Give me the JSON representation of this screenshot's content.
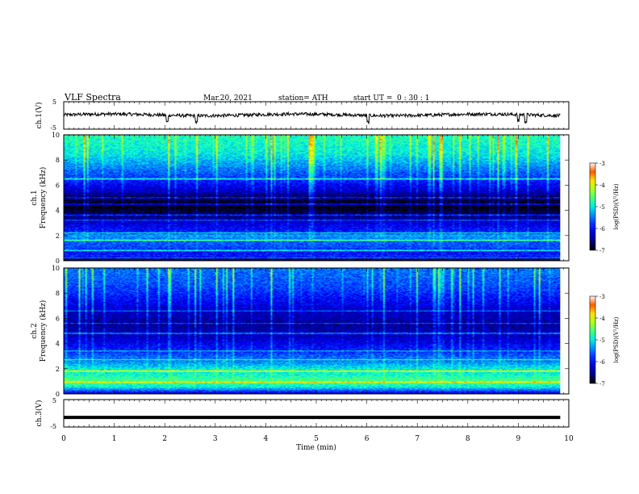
{
  "header": {
    "title": "VLF  Spectra",
    "date": "Mar.20, 2021",
    "station": "station= ATH",
    "start_label": "start  UT  =",
    "start_time": "0  : 30 : 1"
  },
  "chart_data": [
    {
      "type": "line",
      "name": "ch1-waveform",
      "ylabel": "ch.1(V)",
      "yticks": [
        "5",
        "-5"
      ],
      "ylim": [
        -5,
        5
      ],
      "xlim": [
        0,
        10
      ],
      "data_end_min": 9.83,
      "baseline_v": 0.2,
      "noise_amplitude_v": 1.2,
      "dip_at_min": [
        2.05,
        2.63,
        6.02,
        9.0,
        9.15
      ],
      "line_color": "#000000"
    },
    {
      "type": "heatmap",
      "name": "ch1-spectrogram",
      "ylabel_line1": "ch.1",
      "ylabel_line2": "Frequency  (kHz)",
      "yticks": [
        "0",
        "2",
        "4",
        "6",
        "8",
        "10"
      ],
      "ylim_khz": [
        0,
        10
      ],
      "xlim_min": [
        0,
        10
      ],
      "data_end_min": 9.83,
      "log_psd_range": [
        -7,
        -3
      ],
      "colorbar": {
        "label": "log(PSD)(V²/Hz)",
        "ticks": [
          "-3",
          "-4",
          "-5",
          "-6",
          "-7"
        ]
      },
      "band_profile_khz_logpsd": [
        [
          0.0,
          -7.0
        ],
        [
          0.3,
          -5.8
        ],
        [
          0.6,
          -6.0
        ],
        [
          1.0,
          -5.7
        ],
        [
          1.5,
          -5.6
        ],
        [
          2.0,
          -5.3
        ],
        [
          2.3,
          -5.9
        ],
        [
          3.0,
          -6.2
        ],
        [
          3.5,
          -6.6
        ],
        [
          4.2,
          -7.0
        ],
        [
          5.0,
          -6.8
        ],
        [
          5.5,
          -6.3
        ],
        [
          6.5,
          -5.8
        ],
        [
          7.5,
          -5.4
        ],
        [
          8.5,
          -5.0
        ],
        [
          10.0,
          -4.8
        ]
      ],
      "sferic_lines_khz": [
        0.2,
        0.8,
        1.6,
        2.2,
        3.2,
        3.6,
        4.5,
        5.0,
        6.5
      ]
    },
    {
      "type": "heatmap",
      "name": "ch2-spectrogram",
      "ylabel_line1": "ch.2",
      "ylabel_line2": "Frequency  (kHz)",
      "yticks": [
        "0",
        "2",
        "4",
        "6",
        "8",
        "10"
      ],
      "ylim_khz": [
        0,
        10
      ],
      "xlim_min": [
        0,
        10
      ],
      "data_end_min": 9.83,
      "log_psd_range": [
        -7,
        -3
      ],
      "colorbar": {
        "label": "log(PSD)(V²/Hz)",
        "ticks": [
          "-3",
          "-4",
          "-5",
          "-6",
          "-7"
        ]
      },
      "band_profile_khz_logpsd": [
        [
          0.0,
          -6.2
        ],
        [
          0.5,
          -5.0
        ],
        [
          1.0,
          -4.6
        ],
        [
          1.5,
          -4.9
        ],
        [
          2.0,
          -5.0
        ],
        [
          2.5,
          -5.4
        ],
        [
          3.0,
          -5.6
        ],
        [
          3.5,
          -5.9
        ],
        [
          4.5,
          -6.3
        ],
        [
          5.5,
          -6.5
        ],
        [
          6.5,
          -6.3
        ],
        [
          7.5,
          -6.0
        ],
        [
          8.5,
          -5.7
        ],
        [
          10.0,
          -5.5
        ]
      ],
      "sferic_lines_khz": [
        0.9,
        1.8,
        2.7,
        3.4,
        4.8,
        5.6,
        6.6
      ]
    },
    {
      "type": "line",
      "name": "ch3-waveform",
      "ylabel": "ch.3(V)",
      "yticks": [
        "5",
        "-5"
      ],
      "ylim": [
        -5,
        5
      ],
      "xlim": [
        0,
        10
      ],
      "data_end_min": 9.83,
      "baseline_v": -1.5,
      "line_color": "#000000"
    }
  ],
  "xaxis": {
    "label": "Time  (min)",
    "ticks": [
      "0",
      "1",
      "2",
      "3",
      "4",
      "5",
      "6",
      "7",
      "8",
      "9",
      "10"
    ]
  }
}
